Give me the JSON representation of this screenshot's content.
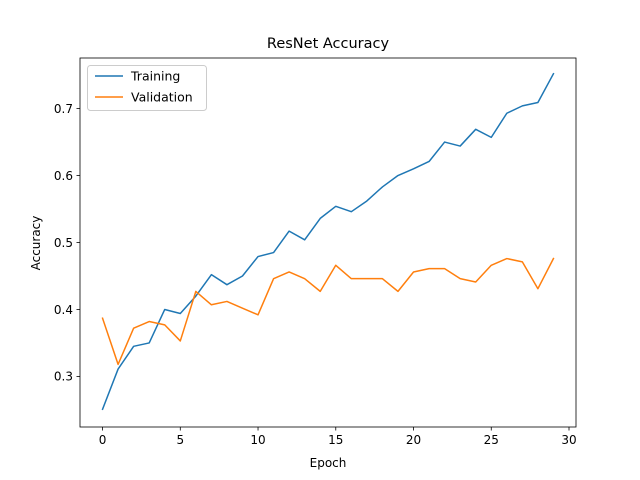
{
  "chart_data": {
    "type": "line",
    "title": "ResNet Accuracy",
    "xlabel": "Epoch",
    "ylabel": "Accuracy",
    "xlim": [
      -1.45,
      30.45
    ],
    "ylim": [
      0.2245,
      0.7755
    ],
    "xticks": [
      0,
      5,
      10,
      15,
      20,
      25,
      30
    ],
    "yticks": [
      0.3,
      0.4,
      0.5,
      0.6,
      0.7
    ],
    "grid": false,
    "legend_position": "top-left",
    "x": [
      0,
      1,
      2,
      3,
      4,
      5,
      6,
      7,
      8,
      9,
      10,
      11,
      12,
      13,
      14,
      15,
      16,
      17,
      18,
      19,
      20,
      21,
      22,
      23,
      24,
      25,
      26,
      27,
      28,
      29
    ],
    "series": [
      {
        "name": "Training",
        "color": "#1f77b4",
        "values": [
          0.251,
          0.311,
          0.345,
          0.35,
          0.4,
          0.394,
          0.42,
          0.452,
          0.437,
          0.45,
          0.479,
          0.485,
          0.517,
          0.504,
          0.536,
          0.554,
          0.546,
          0.562,
          0.583,
          0.6,
          0.61,
          0.621,
          0.65,
          0.644,
          0.669,
          0.657,
          0.693,
          0.704,
          0.709,
          0.752
        ]
      },
      {
        "name": "Validation",
        "color": "#ff7f0e",
        "values": [
          0.387,
          0.318,
          0.372,
          0.382,
          0.377,
          0.353,
          0.427,
          0.407,
          0.412,
          0.402,
          0.392,
          0.446,
          0.456,
          0.446,
          0.427,
          0.466,
          0.446,
          0.446,
          0.446,
          0.427,
          0.456,
          0.461,
          0.461,
          0.446,
          0.441,
          0.466,
          0.476,
          0.471,
          0.431,
          0.476
        ]
      }
    ]
  }
}
